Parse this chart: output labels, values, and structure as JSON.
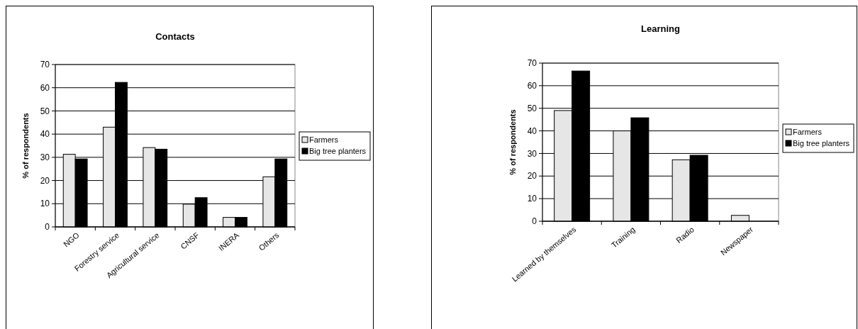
{
  "chart_data": [
    {
      "type": "bar",
      "title": "Contacts",
      "ylabel": "% of respondents",
      "categories": [
        "NGO",
        "Forestry service",
        "Agricultural service",
        "CNSF",
        "INERA",
        "Others"
      ],
      "series": [
        {
          "name": "Farmers",
          "color": "#e6e6e6",
          "values": [
            31.3,
            43,
            34.2,
            9.8,
            4.1,
            21.6
          ]
        },
        {
          "name": "Big tree planters",
          "color": "#000000",
          "values": [
            29.3,
            62.3,
            33.5,
            12.6,
            4.1,
            29.3
          ]
        }
      ],
      "ylim": [
        0,
        70
      ],
      "yticks": [
        0,
        10,
        20,
        30,
        40,
        50,
        60,
        70
      ],
      "grid": "y",
      "legend": "right"
    },
    {
      "type": "bar",
      "title": "Learning",
      "ylabel": "% of respondents",
      "categories": [
        "Learned by themselves",
        "Training",
        "Radio",
        "Newspaper"
      ],
      "series": [
        {
          "name": "Farmers",
          "color": "#e6e6e6",
          "values": [
            49,
            40,
            27.2,
            2.6
          ]
        },
        {
          "name": "Big tree planters",
          "color": "#000000",
          "values": [
            66.5,
            45.8,
            29.2,
            0
          ]
        }
      ],
      "ylim": [
        0,
        70
      ],
      "yticks": [
        0,
        10,
        20,
        30,
        40,
        50,
        60,
        70
      ],
      "grid": "y",
      "legend": "right"
    }
  ]
}
